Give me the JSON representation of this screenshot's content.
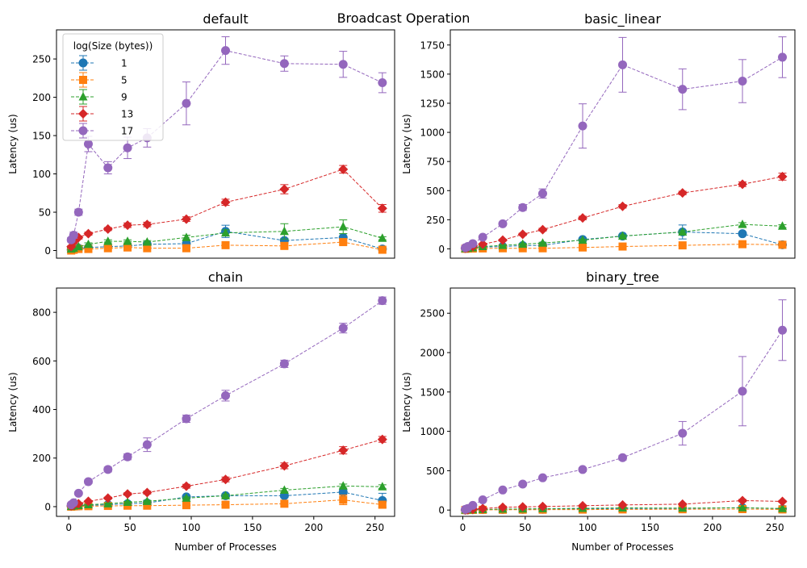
{
  "figure": {
    "suptitle": "Broadcast Operation",
    "xlabel": "Number of Processes",
    "ylabel": "Latency (us)"
  },
  "legend": {
    "title": "log(Size (bytes))",
    "location": "upper-left of first subplot",
    "entries": [
      {
        "label": "1",
        "color": "#1f77b4",
        "marker": "circle"
      },
      {
        "label": "5",
        "color": "#ff7f0e",
        "marker": "square"
      },
      {
        "label": "9",
        "color": "#2ca02c",
        "marker": "triangle"
      },
      {
        "label": "13",
        "color": "#d62728",
        "marker": "diamond"
      },
      {
        "label": "17",
        "color": "#9467bd",
        "marker": "circle"
      }
    ]
  },
  "chart_data": [
    {
      "type": "line",
      "title": "default",
      "xlim": [
        -10,
        266
      ],
      "ylim": [
        -10,
        288
      ],
      "xticks": [],
      "yticks": [
        0,
        50,
        100,
        150,
        200,
        250
      ],
      "x": [
        2,
        4,
        8,
        16,
        32,
        48,
        64,
        96,
        128,
        176,
        224,
        256
      ],
      "series": [
        {
          "name": "1",
          "values": [
            1,
            2,
            3,
            4,
            5,
            6,
            8,
            9,
            25,
            13,
            17,
            2
          ],
          "errors": [
            1,
            1,
            1,
            1,
            1,
            1,
            2,
            2,
            8,
            3,
            5,
            1
          ]
        },
        {
          "name": "5",
          "values": [
            0,
            1,
            2,
            2,
            3,
            4,
            3,
            3,
            7,
            6,
            11,
            1
          ],
          "errors": [
            1,
            1,
            1,
            1,
            1,
            1,
            1,
            2,
            4,
            3,
            3,
            1
          ]
        },
        {
          "name": "9",
          "values": [
            2,
            3,
            5,
            8,
            12,
            12,
            11,
            17,
            23,
            25,
            31,
            16
          ],
          "errors": [
            1,
            1,
            1,
            2,
            2,
            2,
            2,
            3,
            4,
            10,
            9,
            2
          ]
        },
        {
          "name": "13",
          "values": [
            5,
            11,
            17,
            22,
            28,
            33,
            34,
            41,
            63,
            80,
            106,
            55
          ],
          "errors": [
            1,
            2,
            2,
            2,
            2,
            3,
            3,
            3,
            4,
            6,
            5,
            5
          ]
        },
        {
          "name": "17",
          "values": [
            14,
            20,
            50,
            139,
            108,
            134,
            147,
            192,
            261,
            244,
            243,
            219
          ],
          "errors": [
            3,
            4,
            4,
            10,
            8,
            14,
            12,
            28,
            18,
            10,
            17,
            13
          ]
        }
      ]
    },
    {
      "type": "line",
      "title": "basic_linear",
      "xlim": [
        -10,
        266
      ],
      "ylim": [
        -80,
        1880
      ],
      "xticks": [],
      "yticks": [
        0,
        250,
        500,
        750,
        1000,
        1250,
        1500,
        1750
      ],
      "x": [
        2,
        4,
        8,
        16,
        32,
        48,
        64,
        96,
        128,
        176,
        224,
        256
      ],
      "series": [
        {
          "name": "1",
          "values": [
            3,
            5,
            8,
            15,
            20,
            28,
            30,
            80,
            110,
            145,
            130,
            35
          ],
          "errors": [
            2,
            2,
            3,
            4,
            5,
            5,
            6,
            10,
            15,
            60,
            15,
            10
          ]
        },
        {
          "name": "5",
          "values": [
            1,
            2,
            3,
            4,
            5,
            5,
            5,
            12,
            20,
            30,
            40,
            35
          ],
          "errors": [
            1,
            1,
            1,
            1,
            2,
            2,
            2,
            3,
            4,
            5,
            6,
            6
          ]
        },
        {
          "name": "9",
          "values": [
            2,
            5,
            10,
            20,
            30,
            40,
            50,
            75,
            110,
            145,
            210,
            195
          ],
          "errors": [
            1,
            2,
            3,
            4,
            5,
            6,
            7,
            8,
            10,
            12,
            15,
            12
          ]
        },
        {
          "name": "13",
          "values": [
            5,
            10,
            20,
            40,
            75,
            125,
            165,
            265,
            365,
            480,
            555,
            620
          ],
          "errors": [
            2,
            3,
            4,
            5,
            8,
            10,
            12,
            15,
            15,
            15,
            20,
            30
          ]
        },
        {
          "name": "17",
          "values": [
            10,
            20,
            45,
            100,
            215,
            355,
            475,
            1055,
            1580,
            1370,
            1440,
            1645
          ],
          "errors": [
            3,
            5,
            8,
            10,
            15,
            25,
            40,
            190,
            235,
            175,
            185,
            175
          ]
        }
      ]
    },
    {
      "type": "line",
      "title": "chain",
      "xlim": [
        -10,
        266
      ],
      "ylim": [
        -40,
        900
      ],
      "xticks": [
        0,
        50,
        100,
        150,
        200,
        250
      ],
      "yticks": [
        0,
        200,
        400,
        600,
        800
      ],
      "x": [
        2,
        4,
        8,
        16,
        32,
        48,
        64,
        96,
        128,
        176,
        224,
        256
      ],
      "series": [
        {
          "name": "1",
          "values": [
            1,
            2,
            3,
            5,
            8,
            12,
            15,
            40,
            45,
            45,
            60,
            25
          ],
          "errors": [
            1,
            1,
            1,
            2,
            2,
            3,
            4,
            6,
            8,
            8,
            10,
            30
          ]
        },
        {
          "name": "5",
          "values": [
            0,
            1,
            2,
            2,
            3,
            4,
            4,
            6,
            8,
            12,
            28,
            8
          ],
          "errors": [
            1,
            1,
            1,
            1,
            1,
            1,
            1,
            2,
            3,
            4,
            20,
            8
          ]
        },
        {
          "name": "9",
          "values": [
            1,
            3,
            5,
            8,
            12,
            18,
            22,
            35,
            45,
            68,
            85,
            82
          ],
          "errors": [
            1,
            1,
            2,
            2,
            3,
            3,
            4,
            5,
            6,
            7,
            8,
            8
          ]
        },
        {
          "name": "13",
          "values": [
            3,
            6,
            12,
            22,
            35,
            52,
            58,
            84,
            112,
            168,
            232,
            277
          ],
          "errors": [
            1,
            2,
            2,
            3,
            4,
            5,
            6,
            8,
            10,
            12,
            15,
            12
          ]
        },
        {
          "name": "17",
          "values": [
            8,
            16,
            55,
            103,
            153,
            205,
            255,
            362,
            457,
            588,
            735,
            848
          ],
          "errors": [
            2,
            3,
            6,
            8,
            10,
            12,
            28,
            15,
            22,
            15,
            20,
            15
          ]
        }
      ]
    },
    {
      "type": "line",
      "title": "binary_tree",
      "xlim": [
        -10,
        266
      ],
      "ylim": [
        -80,
        2820
      ],
      "xticks": [
        0,
        50,
        100,
        150,
        200,
        250
      ],
      "yticks": [
        0,
        500,
        1000,
        1500,
        2000,
        2500
      ],
      "x": [
        2,
        4,
        8,
        16,
        32,
        48,
        64,
        96,
        128,
        176,
        224,
        256
      ],
      "series": [
        {
          "name": "1",
          "values": [
            1,
            3,
            5,
            6,
            7,
            8,
            10,
            15,
            20,
            20,
            30,
            15
          ],
          "errors": [
            1,
            1,
            2,
            2,
            2,
            3,
            3,
            4,
            5,
            5,
            6,
            40
          ]
        },
        {
          "name": "5",
          "values": [
            0,
            1,
            2,
            3,
            4,
            5,
            5,
            6,
            8,
            10,
            12,
            8
          ],
          "errors": [
            1,
            1,
            1,
            1,
            1,
            1,
            2,
            2,
            2,
            3,
            3,
            3
          ]
        },
        {
          "name": "9",
          "values": [
            1,
            3,
            5,
            8,
            12,
            15,
            18,
            22,
            28,
            25,
            30,
            20
          ],
          "errors": [
            1,
            1,
            1,
            2,
            2,
            3,
            3,
            4,
            5,
            5,
            6,
            5
          ]
        },
        {
          "name": "13",
          "values": [
            2,
            5,
            10,
            20,
            35,
            40,
            45,
            55,
            65,
            75,
            120,
            110
          ],
          "errors": [
            1,
            1,
            2,
            3,
            4,
            5,
            5,
            6,
            8,
            10,
            15,
            12
          ]
        },
        {
          "name": "17",
          "values": [
            8,
            20,
            60,
            130,
            255,
            330,
            410,
            515,
            665,
            975,
            1510,
            2285
          ],
          "errors": [
            2,
            4,
            8,
            10,
            15,
            20,
            20,
            25,
            30,
            150,
            440,
            385
          ]
        }
      ]
    }
  ]
}
